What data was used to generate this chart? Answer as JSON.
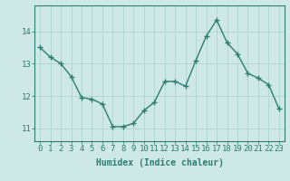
{
  "x": [
    0,
    1,
    2,
    3,
    4,
    5,
    6,
    7,
    8,
    9,
    10,
    11,
    12,
    13,
    14,
    15,
    16,
    17,
    18,
    19,
    20,
    21,
    22,
    23
  ],
  "y": [
    13.5,
    13.2,
    13.0,
    12.6,
    11.95,
    11.9,
    11.75,
    11.05,
    11.05,
    11.15,
    11.55,
    11.8,
    12.45,
    12.45,
    12.3,
    13.1,
    13.85,
    14.35,
    13.65,
    13.3,
    12.7,
    12.55,
    12.35,
    11.6
  ],
  "line_color": "#2e7d6e",
  "marker": "D",
  "marker_size": 2.2,
  "linewidth": 1.0,
  "bg_color": "#cde8e6",
  "grid_color": "#afd4d0",
  "xlabel": "Humidex (Indice chaleur)",
  "xlabel_fontsize": 7,
  "xtick_labels": [
    "0",
    "1",
    "2",
    "3",
    "4",
    "5",
    "6",
    "7",
    "8",
    "9",
    "10",
    "11",
    "12",
    "13",
    "14",
    "15",
    "16",
    "17",
    "18",
    "19",
    "20",
    "21",
    "22",
    "23"
  ],
  "ytick_values": [
    11,
    12,
    13,
    14
  ],
  "ylim": [
    10.6,
    14.8
  ],
  "xlim": [
    -0.5,
    23.5
  ],
  "tick_color": "#2e7d6e",
  "tick_fontsize": 6.5,
  "spine_color": "#2e7d6e"
}
